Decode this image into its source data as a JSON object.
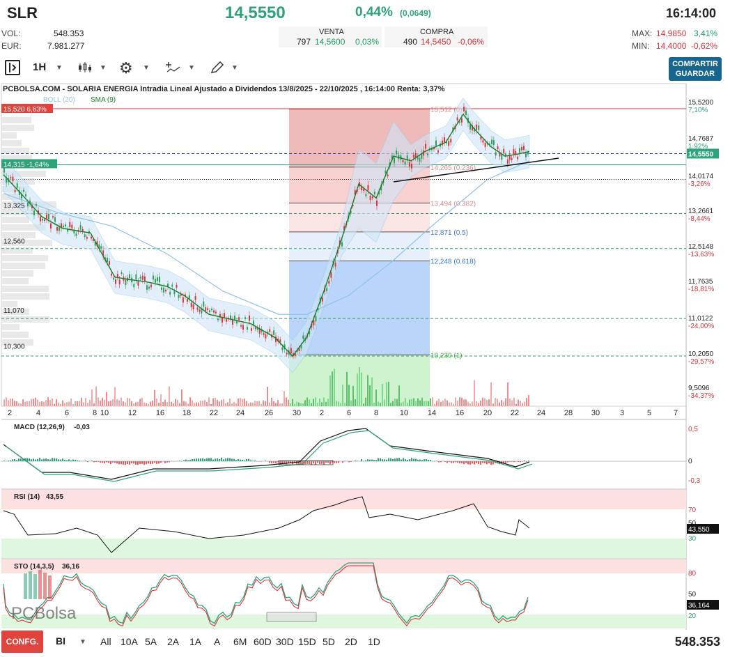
{
  "header": {
    "ticker": "SLR",
    "price": "14,5550",
    "change_pct": "0,44%",
    "change_abs": "(0,0649)",
    "time": "16:14:00",
    "vol_label": "VOL:",
    "vol_value": "548.353",
    "eur_label": "EUR:",
    "eur_value": "7.981.277",
    "sell": {
      "label": "VENTA",
      "qty": "797",
      "price": "14,5600",
      "pct": "0,03%"
    },
    "buy": {
      "label": "COMPRA",
      "qty": "490",
      "price": "14,5450",
      "pct": "-0,06%"
    },
    "max_label": "MAX:",
    "max_value": "14,9850",
    "max_pct": "3,41%",
    "min_label": "MIN:",
    "min_value": "14,4000",
    "min_pct": "-0,62%"
  },
  "toolbar": {
    "interval": "1H",
    "share_line1": "COMPARTIR",
    "share_line2": "GUARDAR"
  },
  "chart_title": "PCBOLSA.COM - SOLARIA ENERGIA Intradia Lineal Ajustado a Dividendos 13/8/2025 - 22/10/2025 , 16:14:00 Renta: 3,37%",
  "overlay_labels": {
    "boll": "BOLL (20)",
    "sma": "SMA (9)",
    "high_tag": "15,520  6,63%",
    "level_tag": "14,315  -1,64%",
    "current_tag": "14,5550"
  },
  "left_price_labels": [
    "13,325",
    "12,560",
    "11,070",
    "10,300"
  ],
  "fib_levels": [
    {
      "label": "15,512 (0)",
      "color": "#e08a8a"
    },
    {
      "label": "14,265 (0.236)",
      "color": "#e08a8a"
    },
    {
      "label": "13,494 (0.382)",
      "color": "#e08a8a"
    },
    {
      "label": "12,871 (0.5)",
      "color": "#3a7bd5"
    },
    {
      "label": "12,248 (0.618)",
      "color": "#3a7bd5"
    },
    {
      "label": "10,230 (1)",
      "color": "#3cb43c"
    }
  ],
  "right_axis": [
    {
      "value": "15,5200",
      "pct": "7,10%",
      "pct_color": "#2ea37a"
    },
    {
      "value": "14,7687",
      "pct": "1,92%",
      "pct_color": "#2ea37a"
    },
    {
      "value": "14,0174",
      "pct": "-3,26%",
      "pct_color": "#d9363e"
    },
    {
      "value": "13,2661",
      "pct": "-8,44%",
      "pct_color": "#d9363e"
    },
    {
      "value": "12,5148",
      "pct": "-13,63%",
      "pct_color": "#d9363e"
    },
    {
      "value": "11,7635",
      "pct": "-18,81%",
      "pct_color": "#d9363e"
    },
    {
      "value": "11,0122",
      "pct": "-24,00%",
      "pct_color": "#d9363e"
    },
    {
      "value": "10,2050",
      "pct": "-29,57%",
      "pct_color": "#d9363e"
    },
    {
      "value": "9,5096",
      "pct": "-34,37%",
      "pct_color": "#d9363e"
    }
  ],
  "x_axis": [
    "2",
    "4",
    "6",
    "8",
    "10",
    "12",
    "16",
    "18",
    "22",
    "24",
    "26",
    "30",
    "2",
    "6",
    "8",
    "10",
    "14",
    "16",
    "20",
    "22",
    "24",
    "28",
    "30",
    "3",
    "5",
    "7"
  ],
  "macd": {
    "label": "MACD (12,26,9)",
    "value": "-0,03",
    "axis": [
      "0,5",
      "0",
      "-0,3"
    ]
  },
  "rsi": {
    "label": "RSI (14)",
    "value": "43,55",
    "axis": [
      "70",
      "50",
      "30"
    ],
    "current": "43,550"
  },
  "sto": {
    "label": "STO (14,3,5)",
    "value": "36,16",
    "axis": [
      "80",
      "50",
      "20"
    ],
    "current": "36,164"
  },
  "logo_text": "PCBolsa",
  "bottom": {
    "config": "CONFG.",
    "mode": "BI",
    "ranges": [
      "All",
      "10A",
      "5A",
      "2A",
      "1A",
      "A",
      "6M",
      "60D",
      "30D",
      "15D",
      "5D",
      "2D",
      "1D"
    ],
    "volume": "548.353"
  },
  "chart_data": {
    "type": "line",
    "title": "PCBOLSA.COM - SOLARIA ENERGIA Intradia Lineal Ajustado a Dividendos 13/8/2025 - 22/10/2025 , 16:14:00 Renta: 3,37%",
    "x": [
      "2",
      "4",
      "6",
      "8",
      "10",
      "12",
      "16",
      "18",
      "22",
      "24",
      "26",
      "30",
      "2",
      "6",
      "8",
      "10",
      "14",
      "16",
      "20",
      "22"
    ],
    "series": [
      {
        "name": "SMA (9)",
        "values": [
          14.1,
          13.2,
          12.95,
          12.85,
          11.9,
          11.85,
          11.8,
          11.5,
          11.1,
          10.9,
          10.6,
          10.2,
          11.6,
          13.3,
          13.6,
          14.5,
          14.6,
          15.4,
          14.7,
          14.55
        ]
      }
    ],
    "ylim": [
      9.4,
      15.6
    ]
  }
}
